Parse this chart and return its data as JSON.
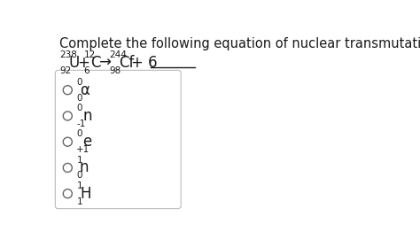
{
  "title": "Complete the following equation of nuclear transmutation.",
  "options": [
    {
      "sup": "0",
      "sub": "0",
      "symbol": "α"
    },
    {
      "sup": "0",
      "sub": "-1",
      "symbol": "n"
    },
    {
      "sup": "0",
      "sub": "+1",
      "symbol": "e"
    },
    {
      "sup": "1",
      "sub": "0",
      "symbol": "n"
    },
    {
      "sup": "1",
      "sub": "1",
      "symbol": "H"
    }
  ],
  "bg_color": "#ffffff",
  "text_color": "#1a1a1a",
  "title_fontsize": 10.5,
  "eq_fontsize": 12,
  "script_fontsize": 7.5,
  "option_fontsize": 12,
  "option_script_fontsize": 7.5
}
